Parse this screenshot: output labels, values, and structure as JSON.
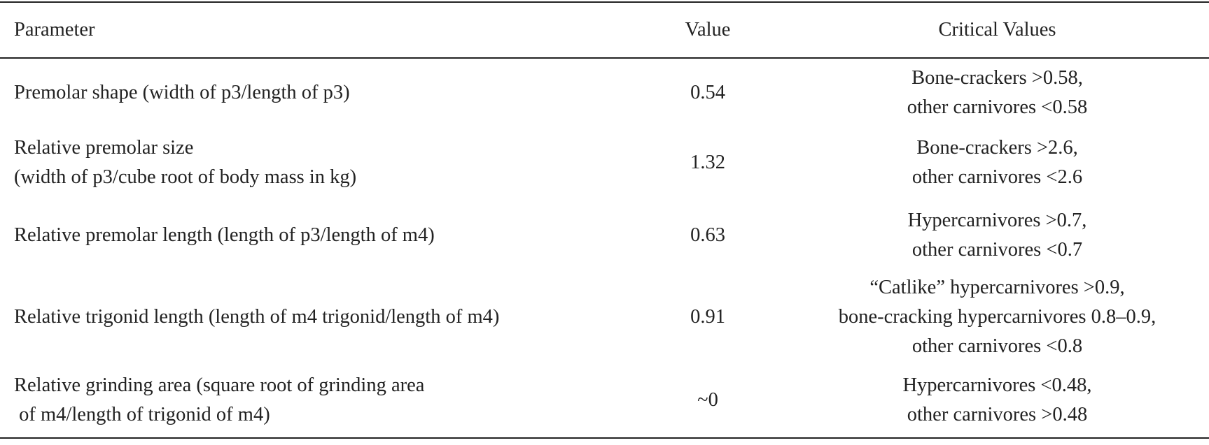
{
  "table": {
    "header": [
      "Parameter",
      "Value",
      "Critical Values"
    ],
    "rows": [
      [
        [
          "Premolar shape (width of p3/length of p3)"
        ],
        [
          "0.54"
        ],
        [
          "Bone-crackers >0.58,",
          "other carnivores <0.58"
        ]
      ],
      [
        [
          "Relative premolar size",
          "(width of p3/cube root of body mass in kg)"
        ],
        [
          "1.32"
        ],
        [
          "Bone-crackers >2.6,",
          "other carnivores <2.6"
        ]
      ],
      [
        [
          "Relative premolar length (length of p3/length of m4)"
        ],
        [
          "0.63"
        ],
        [
          "Hypercarnivores >0.7,",
          "other carnivores <0.7"
        ]
      ],
      [
        [
          "Relative trigonid length (length of m4 trigonid/length of m4)"
        ],
        [
          "0.91"
        ],
        [
          "“Catlike” hypercarnivores >0.9,",
          "bone-cracking hypercarnivores 0.8–0.9,",
          "other carnivores <0.8"
        ]
      ],
      [
        [
          "Relative grinding area (square root of grinding area",
          " of m4/length of trigonid of m4)"
        ],
        [
          "~0"
        ],
        [
          "Hypercarnivores <0.48,",
          "other carnivores >0.48"
        ]
      ]
    ]
  }
}
